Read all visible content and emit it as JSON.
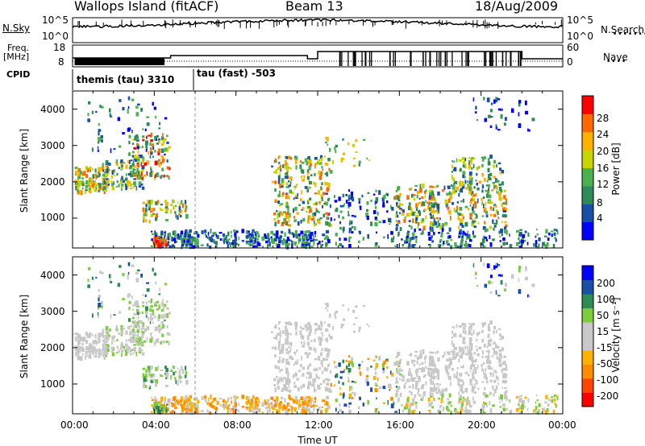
{
  "header": {
    "title": "Wallops Island (fitACF)",
    "beam": "Beam 13",
    "date": "18/Aug/2009"
  },
  "side_labels": {
    "nsky": "N.Sky",
    "freq_top": "Freq.",
    "freq_unit": "[MHz]",
    "cpid": "CPID",
    "nsearch": "N.Search",
    "nave": "Nave"
  },
  "strip_ticks": {
    "noise_left": [
      "10^5",
      "10^0"
    ],
    "noise_right": [
      "10^5",
      "10^0"
    ],
    "freq_left": [
      "18",
      "8"
    ],
    "freq_right": [
      "60",
      "0"
    ]
  },
  "cpid_segments": [
    {
      "label": "themis (tau) 3310",
      "start_hour": 0,
      "end_hour": 6
    },
    {
      "label": "tau (fast) -503",
      "start_hour": 6,
      "end_hour": 24
    }
  ],
  "colors": {
    "power_scale": [
      "#0000ff",
      "#1a4fa8",
      "#2e8b57",
      "#4caf50",
      "#c8d400",
      "#ffb000",
      "#ff6a00",
      "#ff0000"
    ],
    "velocity_scale": [
      "#ff0000",
      "#ff4500",
      "#ff8c00",
      "#ffb000",
      "#c8c8c8",
      "#c8c8c8",
      "#7ccd3c",
      "#2e8b57",
      "#1a4fa8",
      "#0000ff"
    ]
  },
  "chart_data": [
    {
      "type": "heatmap",
      "panel": "power",
      "xlabel": "",
      "ylabel": "Slant Range [km]",
      "xlim_hours": [
        0,
        24
      ],
      "ylim": [
        180,
        4500
      ],
      "y_ticks": [
        1000,
        2000,
        3000,
        4000
      ],
      "colorbar_label": "Power [dB]",
      "colorbar_ticks": [
        4,
        8,
        12,
        16,
        20,
        24,
        28
      ],
      "colorbar_range": [
        0,
        32
      ]
    },
    {
      "type": "heatmap",
      "panel": "velocity",
      "xlabel": "Time UT",
      "ylabel": "Slant Range [km]",
      "xlim_hours": [
        0,
        24
      ],
      "ylim": [
        180,
        4500
      ],
      "y_ticks": [
        1000,
        2000,
        3000,
        4000
      ],
      "x_tick_labels": [
        "00:00",
        "04:00",
        "08:00",
        "12:00",
        "16:00",
        "20:00",
        "00:00"
      ],
      "colorbar_label": "Velocity [m s⁻¹]",
      "colorbar_ticks": [
        200,
        100,
        50,
        15,
        -15,
        -50,
        -100,
        -200
      ]
    }
  ]
}
